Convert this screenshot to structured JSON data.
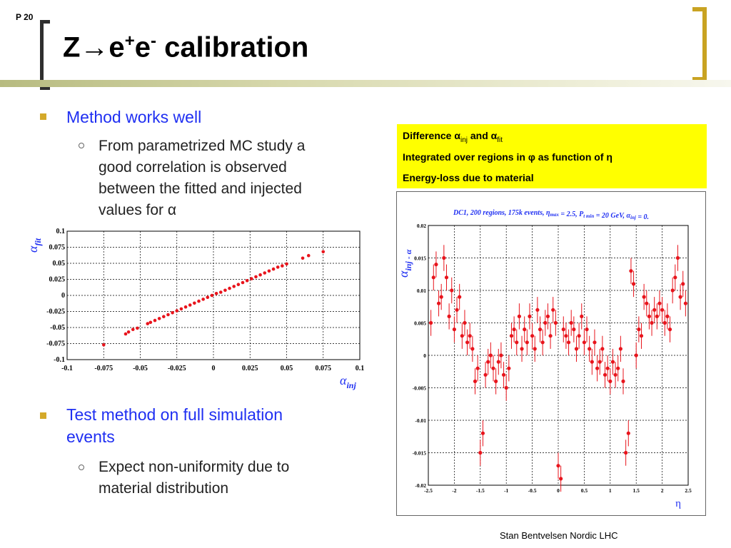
{
  "header": {
    "page_number": "P 20",
    "title_prefix": "Z→e",
    "title_sup1": "+",
    "title_mid": "e",
    "title_sup2": "-",
    "title_suffix": " calibration",
    "accent_color": "#d4a92a"
  },
  "bullets": {
    "b1": "Method works well",
    "b1_sub": [
      "From parametrized MC study a",
      "good correlation is observed",
      "between the fitted and injected",
      "values for α"
    ],
    "b2": [
      "Test method on full simulation",
      "events"
    ],
    "b2_sub": [
      "Expect non-uniformity due to",
      "material distribution"
    ]
  },
  "notes": {
    "line1_a": "Difference α",
    "line1_sub1": "inj",
    "line1_b": " and α",
    "line1_sub2": "fit",
    "line2": "Integrated over regions in φ as function of η",
    "line3": "Energy-loss due to material"
  },
  "footer": "Stan Bentvelsen Nordic LHC",
  "chart_data": [
    {
      "type": "scatter",
      "title": "",
      "xlabel": "α_inj",
      "ylabel": "α_fit",
      "xlim": [
        -0.1,
        0.1
      ],
      "ylim": [
        -0.1,
        0.1
      ],
      "xticks": [
        "-0.1",
        "-0.075",
        "-0.05",
        "-0.025",
        "0",
        "0.025",
        "0.05",
        "0.075",
        "0.1"
      ],
      "yticks": [
        "0.1",
        "0.075",
        "0.05",
        "0.025",
        "0",
        "-0.025",
        "-0.05",
        "-0.075",
        "-0.1"
      ],
      "grid": true,
      "color": "#e8141c",
      "x": [
        -0.075,
        -0.06,
        -0.058,
        -0.055,
        -0.052,
        -0.045,
        -0.043,
        -0.04,
        -0.037,
        -0.034,
        -0.031,
        -0.028,
        -0.025,
        -0.022,
        -0.019,
        -0.016,
        -0.013,
        -0.01,
        -0.007,
        -0.004,
        -0.001,
        0.002,
        0.005,
        0.008,
        0.011,
        0.014,
        0.017,
        0.02,
        0.023,
        0.026,
        0.029,
        0.032,
        0.035,
        0.038,
        0.041,
        0.044,
        0.047,
        0.05,
        0.061,
        0.065,
        0.075
      ],
      "y": [
        -0.077,
        -0.06,
        -0.057,
        -0.053,
        -0.051,
        -0.044,
        -0.042,
        -0.039,
        -0.036,
        -0.033,
        -0.03,
        -0.027,
        -0.024,
        -0.021,
        -0.018,
        -0.015,
        -0.012,
        -0.009,
        -0.006,
        -0.003,
        0.0,
        0.003,
        0.005,
        0.008,
        0.011,
        0.014,
        0.017,
        0.02,
        0.023,
        0.026,
        0.029,
        0.032,
        0.035,
        0.038,
        0.041,
        0.044,
        0.046,
        0.049,
        0.058,
        0.062,
        0.068
      ]
    },
    {
      "type": "scatter",
      "title": "DC1, 200 regions, 175k events, η_max = 2.5, P_t min = 20 GeV, α_inj = 0.",
      "xlabel": "η",
      "ylabel": "α_inj - α_fit",
      "xlim": [
        -2.5,
        2.5
      ],
      "ylim": [
        -0.02,
        0.02
      ],
      "xticks": [
        "-2.5",
        "-2",
        "-1.5",
        "-1",
        "-0.5",
        "0",
        "0.5",
        "1",
        "1.5",
        "2",
        "2.5"
      ],
      "yticks": [
        "0.02",
        "0.015",
        "0.01",
        "0.005",
        "0",
        "-0.005",
        "-0.01",
        "-0.015",
        "-0.02"
      ],
      "grid": true,
      "color": "#e8141c",
      "x": [
        -2.45,
        -2.4,
        -2.35,
        -2.3,
        -2.25,
        -2.2,
        -2.15,
        -2.1,
        -2.05,
        -2.0,
        -1.95,
        -1.9,
        -1.85,
        -1.8,
        -1.75,
        -1.7,
        -1.65,
        -1.6,
        -1.55,
        -1.5,
        -1.45,
        -1.4,
        -1.35,
        -1.3,
        -1.25,
        -1.2,
        -1.15,
        -1.1,
        -1.05,
        -1.0,
        -0.95,
        -0.9,
        -0.85,
        -0.8,
        -0.75,
        -0.7,
        -0.65,
        -0.6,
        -0.55,
        -0.5,
        -0.45,
        -0.4,
        -0.35,
        -0.3,
        -0.25,
        -0.2,
        -0.15,
        -0.1,
        -0.05,
        0.0,
        0.05,
        0.1,
        0.15,
        0.2,
        0.25,
        0.3,
        0.35,
        0.4,
        0.45,
        0.5,
        0.55,
        0.6,
        0.65,
        0.7,
        0.75,
        0.8,
        0.85,
        0.9,
        0.95,
        1.0,
        1.05,
        1.1,
        1.15,
        1.2,
        1.25,
        1.3,
        1.35,
        1.4,
        1.45,
        1.5,
        1.55,
        1.6,
        1.65,
        1.7,
        1.75,
        1.8,
        1.85,
        1.9,
        1.95,
        2.0,
        2.05,
        2.1,
        2.15,
        2.2,
        2.25,
        2.3,
        2.35,
        2.4,
        2.45
      ],
      "y": [
        0.005,
        0.012,
        0.014,
        0.008,
        0.009,
        0.015,
        0.012,
        0.006,
        0.01,
        0.004,
        0.007,
        0.009,
        0.003,
        0.005,
        0.002,
        0.003,
        0.001,
        -0.004,
        -0.002,
        -0.015,
        -0.012,
        -0.003,
        -0.001,
        0.0,
        -0.002,
        -0.004,
        -0.001,
        0.0,
        -0.003,
        -0.005,
        -0.002,
        0.003,
        0.004,
        0.002,
        0.006,
        0.001,
        0.004,
        0.002,
        0.006,
        0.003,
        0.001,
        0.007,
        0.004,
        0.002,
        0.005,
        0.006,
        0.003,
        0.007,
        0.005,
        -0.017,
        -0.019,
        0.004,
        0.003,
        0.002,
        0.005,
        0.004,
        0.001,
        0.003,
        0.006,
        0.002,
        0.004,
        0.001,
        -0.001,
        0.002,
        -0.002,
        -0.001,
        0.001,
        -0.003,
        -0.002,
        -0.004,
        -0.001,
        -0.003,
        -0.002,
        0.001,
        -0.004,
        -0.015,
        -0.012,
        0.013,
        0.011,
        0.0,
        0.004,
        0.003,
        0.009,
        0.008,
        0.006,
        0.005,
        0.007,
        0.006,
        0.008,
        0.007,
        0.005,
        0.006,
        0.004,
        0.01,
        0.012,
        0.015,
        0.009,
        0.011,
        0.008
      ],
      "err": 0.002
    }
  ]
}
